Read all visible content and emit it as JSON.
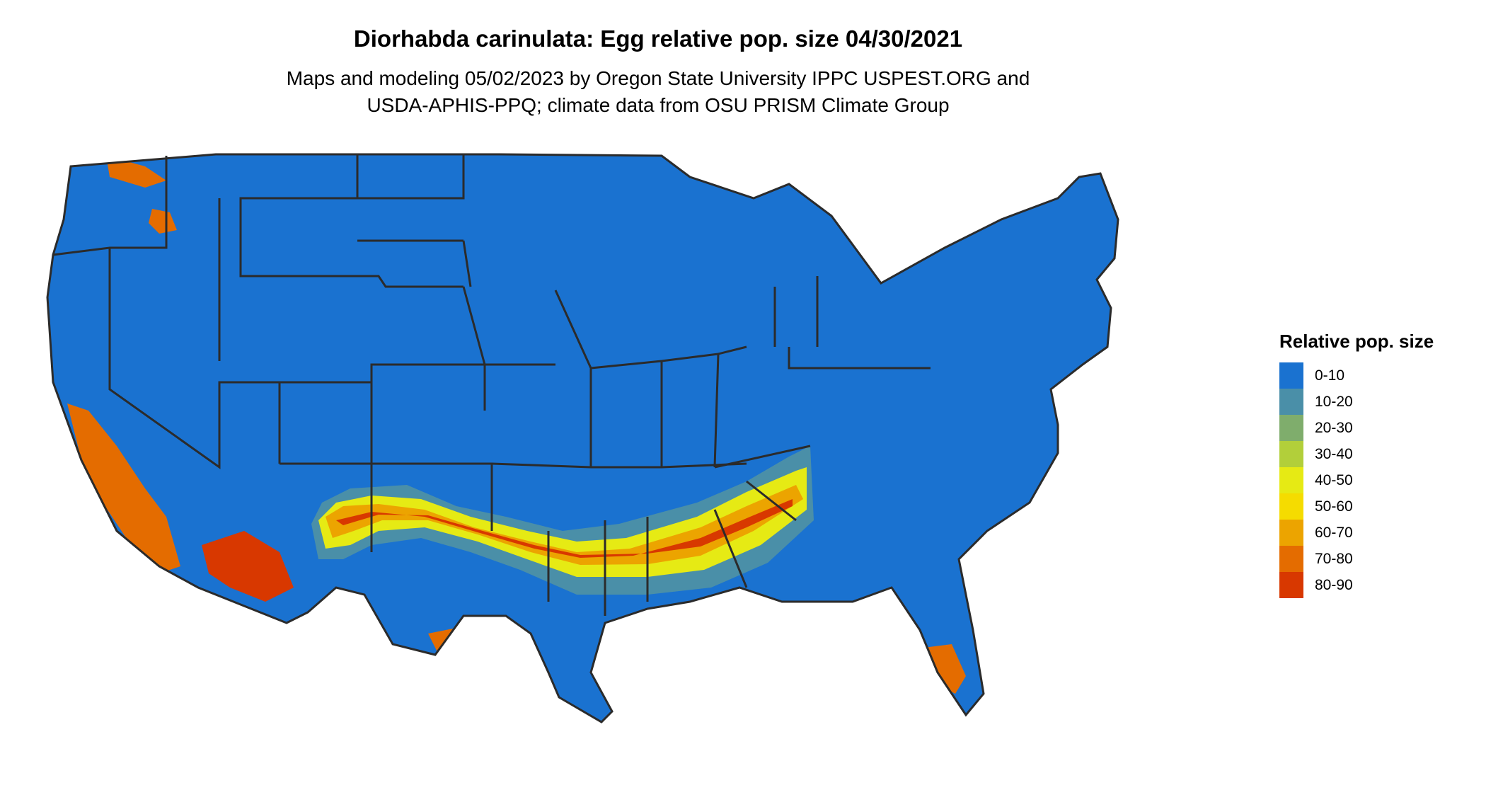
{
  "title": "Diorhabda carinulata: Egg relative pop. size 04/30/2021",
  "subtitle_line1": "Maps and modeling 05/02/2023 by Oregon State University IPPC USPEST.ORG and",
  "subtitle_line2": "USDA-APHIS-PPQ; climate data from OSU PRISM Climate Group",
  "legend": {
    "title": "Relative pop. size",
    "items": [
      {
        "label": "0-10",
        "color": "#1a72d0"
      },
      {
        "label": "10-20",
        "color": "#4a8fa8"
      },
      {
        "label": "20-30",
        "color": "#7fad6c"
      },
      {
        "label": "30-40",
        "color": "#b2cf3a"
      },
      {
        "label": "40-50",
        "color": "#e6ea14"
      },
      {
        "label": "50-60",
        "color": "#f5dc00"
      },
      {
        "label": "60-70",
        "color": "#eca400"
      },
      {
        "label": "70-80",
        "color": "#e46c00"
      },
      {
        "label": "80-90",
        "color": "#d83800"
      }
    ]
  },
  "map": {
    "region": "Contiguous United States",
    "background_color": "#1a72d0",
    "border_color": "#2b2b2b"
  }
}
